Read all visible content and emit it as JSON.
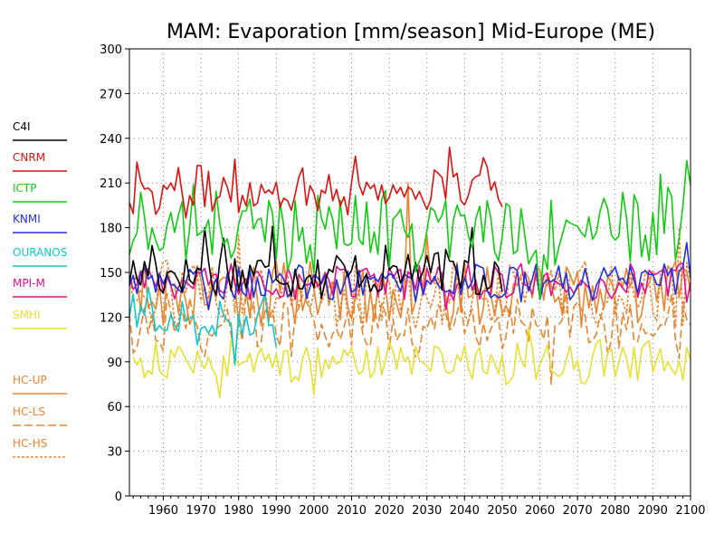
{
  "chart_data": {
    "type": "line",
    "title": "MAM: Evaporation [mm/season] Mid-Europe (ME)",
    "xlabel": "",
    "ylabel": "",
    "xlim": [
      1951,
      2100
    ],
    "ylim": [
      0,
      300
    ],
    "xticks": [
      1960,
      1970,
      1980,
      1990,
      2000,
      2010,
      2020,
      2030,
      2040,
      2050,
      2060,
      2070,
      2080,
      2090,
      2100
    ],
    "yticks": [
      0,
      30,
      60,
      90,
      120,
      150,
      180,
      210,
      240,
      270,
      300
    ],
    "grid": true,
    "legend_position": "left",
    "series": [
      {
        "name": "C4I",
        "color": "#000000",
        "dash": "solid",
        "x_start": 1951,
        "x_end": 2050,
        "mean": 150,
        "amp": 11,
        "anchors": [
          [
            1957,
            168
          ],
          [
            1971,
            180
          ],
          [
            1976,
            173
          ],
          [
            1989,
            181
          ],
          [
            2025,
            162
          ],
          [
            2042,
            180
          ]
        ]
      },
      {
        "name": "CNRM",
        "color": "#e01010",
        "dash": "solid",
        "x_start": 1951,
        "x_end": 2050,
        "mean": 205,
        "amp": 11,
        "anchors": [
          [
            1953,
            224
          ],
          [
            1979,
            226
          ],
          [
            2011,
            228
          ],
          [
            2036,
            234
          ],
          [
            2045,
            227
          ]
        ]
      },
      {
        "name": "ICTP",
        "color": "#10cc10",
        "dash": "solid",
        "x_start": 1951,
        "x_end": 2100,
        "mean": 180,
        "amp": 18,
        "anchors": [
          [
            1951,
            162
          ],
          [
            1975,
            183
          ],
          [
            2019,
            205
          ],
          [
            2060,
            132
          ],
          [
            2092,
            216
          ],
          [
            2099,
            225
          ]
        ]
      },
      {
        "name": "KNMI",
        "color": "#2030e0",
        "dash": "solid",
        "x_start": 1951,
        "x_end": 2100,
        "mean": 143,
        "amp": 8,
        "anchors": [
          [
            1972,
            125
          ],
          [
            2099,
            170
          ]
        ]
      },
      {
        "name": "OURANOS",
        "color": "#10c8c8",
        "dash": "solid",
        "x_start": 1951,
        "x_end": 1990,
        "mean": 118,
        "amp": 11,
        "anchors": [
          [
            1956,
            140
          ],
          [
            1979,
            88
          ],
          [
            1989,
            115
          ]
        ]
      },
      {
        "name": "MPI-M",
        "color": "#e0108a",
        "dash": "solid",
        "x_start": 1951,
        "x_end": 2100,
        "mean": 143,
        "amp": 8,
        "anchors": [
          [
            2035,
            125
          ],
          [
            2099,
            130
          ]
        ]
      },
      {
        "name": "SMHI",
        "color": "#e8e030",
        "dash": "solid",
        "x_start": 1952,
        "x_end": 2100,
        "mean": 90,
        "amp": 9,
        "anchors": [
          [
            1975,
            66
          ],
          [
            2000,
            68
          ],
          [
            2057,
            113
          ],
          [
            2085,
            100
          ]
        ]
      },
      {
        "name": "HC-UP",
        "color": "#e88530",
        "dash": "solid",
        "x_start": 1951,
        "x_end": 2100,
        "mean": 135,
        "amp": 15,
        "anchors": [
          [
            2025,
            210
          ],
          [
            2030,
            175
          ]
        ]
      },
      {
        "name": "HC-LS",
        "color": "#e88530",
        "dash": "long-dash",
        "x_start": 1951,
        "x_end": 2100,
        "mean": 115,
        "amp": 14,
        "anchors": [
          [
            2063,
            75
          ]
        ]
      },
      {
        "name": "HC-HS",
        "color": "#e88530",
        "dash": "short-dash",
        "x_start": 1951,
        "x_end": 2100,
        "mean": 135,
        "amp": 14,
        "anchors": [
          [
            1980,
            175
          ],
          [
            2097,
            180
          ]
        ]
      }
    ]
  }
}
